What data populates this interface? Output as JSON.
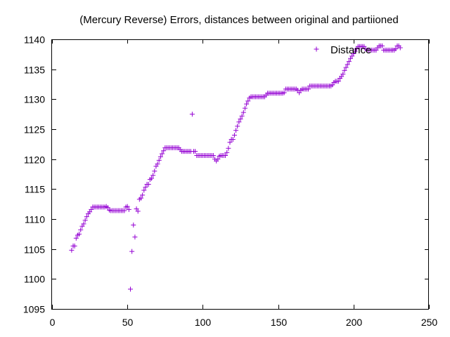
{
  "chart_data": {
    "type": "scatter",
    "title": "(Mercury Reverse) Errors, distances between original and partiioned",
    "xlabel": "",
    "ylabel": "",
    "xlim": [
      0,
      250
    ],
    "ylim": [
      1095,
      1140
    ],
    "xticks": [
      "0",
      "50",
      "100",
      "150",
      "200",
      "250"
    ],
    "yticks": [
      "1095",
      "1100",
      "1105",
      "1110",
      "1115",
      "1120",
      "1125",
      "1130",
      "1135",
      "1140"
    ],
    "grid": false,
    "legend_position": "top-right",
    "series": [
      {
        "name": "Distance",
        "color": "#9400d3",
        "marker": "plus",
        "points": [
          [
            13,
            1104.8
          ],
          [
            14,
            1105.5
          ],
          [
            15,
            1105.5
          ],
          [
            16,
            1106.8
          ],
          [
            17,
            1107.3
          ],
          [
            18,
            1107.5
          ],
          [
            19,
            1108.2
          ],
          [
            20,
            1108.8
          ],
          [
            21,
            1109.2
          ],
          [
            22,
            1109.8
          ],
          [
            23,
            1110.4
          ],
          [
            24,
            1110.9
          ],
          [
            25,
            1111.2
          ],
          [
            26,
            1111.6
          ],
          [
            27,
            1112.0
          ],
          [
            28,
            1112.0
          ],
          [
            29,
            1112.0
          ],
          [
            30,
            1112.0
          ],
          [
            31,
            1112.0
          ],
          [
            32,
            1112.0
          ],
          [
            33,
            1112.0
          ],
          [
            34,
            1112.0
          ],
          [
            35,
            1112.0
          ],
          [
            36,
            1112.1
          ],
          [
            37,
            1111.9
          ],
          [
            38,
            1111.5
          ],
          [
            39,
            1111.4
          ],
          [
            40,
            1111.4
          ],
          [
            41,
            1111.4
          ],
          [
            42,
            1111.4
          ],
          [
            43,
            1111.4
          ],
          [
            44,
            1111.4
          ],
          [
            45,
            1111.4
          ],
          [
            46,
            1111.4
          ],
          [
            47,
            1111.4
          ],
          [
            48,
            1111.4
          ],
          [
            49,
            1112.0
          ],
          [
            50,
            1112.1
          ],
          [
            51,
            1111.6
          ],
          [
            52,
            1098.3
          ],
          [
            53,
            1104.6
          ],
          [
            54,
            1109.0
          ],
          [
            55,
            1107.0
          ],
          [
            56,
            1111.7
          ],
          [
            57,
            1111.3
          ],
          [
            58,
            1113.3
          ],
          [
            59,
            1113.5
          ],
          [
            60,
            1114.0
          ],
          [
            61,
            1114.8
          ],
          [
            62,
            1115.3
          ],
          [
            63,
            1115.8
          ],
          [
            64,
            1115.8
          ],
          [
            65,
            1116.6
          ],
          [
            66,
            1116.8
          ],
          [
            67,
            1117.3
          ],
          [
            68,
            1118.0
          ],
          [
            69,
            1118.8
          ],
          [
            70,
            1119.2
          ],
          [
            71,
            1119.8
          ],
          [
            72,
            1120.4
          ],
          [
            73,
            1120.9
          ],
          [
            74,
            1121.4
          ],
          [
            75,
            1121.9
          ],
          [
            76,
            1121.9
          ],
          [
            77,
            1121.9
          ],
          [
            78,
            1121.9
          ],
          [
            79,
            1121.9
          ],
          [
            80,
            1121.9
          ],
          [
            81,
            1121.9
          ],
          [
            82,
            1121.9
          ],
          [
            83,
            1121.9
          ],
          [
            84,
            1121.9
          ],
          [
            85,
            1121.6
          ],
          [
            86,
            1121.3
          ],
          [
            87,
            1121.3
          ],
          [
            88,
            1121.3
          ],
          [
            89,
            1121.3
          ],
          [
            90,
            1121.3
          ],
          [
            91,
            1121.3
          ],
          [
            92,
            1121.3
          ],
          [
            93,
            1127.5
          ],
          [
            94,
            1121.3
          ],
          [
            95,
            1121.3
          ],
          [
            96,
            1120.6
          ],
          [
            97,
            1120.6
          ],
          [
            98,
            1120.6
          ],
          [
            99,
            1120.6
          ],
          [
            100,
            1120.6
          ],
          [
            101,
            1120.6
          ],
          [
            102,
            1120.6
          ],
          [
            103,
            1120.6
          ],
          [
            104,
            1120.6
          ],
          [
            105,
            1120.6
          ],
          [
            106,
            1120.6
          ],
          [
            107,
            1120.6
          ],
          [
            108,
            1120.0
          ],
          [
            109,
            1119.7
          ],
          [
            110,
            1120.0
          ],
          [
            111,
            1120.5
          ],
          [
            112,
            1120.6
          ],
          [
            113,
            1120.6
          ],
          [
            114,
            1120.6
          ],
          [
            115,
            1120.6
          ],
          [
            116,
            1121.1
          ],
          [
            117,
            1121.8
          ],
          [
            118,
            1122.8
          ],
          [
            119,
            1123.3
          ],
          [
            120,
            1123.3
          ],
          [
            121,
            1124.0
          ],
          [
            122,
            1124.8
          ],
          [
            123,
            1125.5
          ],
          [
            124,
            1126.2
          ],
          [
            125,
            1126.7
          ],
          [
            126,
            1127.2
          ],
          [
            127,
            1127.8
          ],
          [
            128,
            1128.5
          ],
          [
            129,
            1129.2
          ],
          [
            130,
            1129.7
          ],
          [
            131,
            1130.2
          ],
          [
            132,
            1130.4
          ],
          [
            133,
            1130.4
          ],
          [
            134,
            1130.4
          ],
          [
            135,
            1130.4
          ],
          [
            136,
            1130.4
          ],
          [
            137,
            1130.4
          ],
          [
            138,
            1130.4
          ],
          [
            139,
            1130.4
          ],
          [
            140,
            1130.4
          ],
          [
            141,
            1130.4
          ],
          [
            142,
            1130.7
          ],
          [
            143,
            1131.0
          ],
          [
            144,
            1131.0
          ],
          [
            145,
            1131.0
          ],
          [
            146,
            1131.0
          ],
          [
            147,
            1131.0
          ],
          [
            148,
            1131.0
          ],
          [
            149,
            1131.0
          ],
          [
            150,
            1131.0
          ],
          [
            151,
            1131.0
          ],
          [
            152,
            1131.0
          ],
          [
            153,
            1131.0
          ],
          [
            154,
            1131.1
          ],
          [
            155,
            1131.7
          ],
          [
            156,
            1131.7
          ],
          [
            157,
            1131.7
          ],
          [
            158,
            1131.7
          ],
          [
            159,
            1131.7
          ],
          [
            160,
            1131.7
          ],
          [
            161,
            1131.7
          ],
          [
            162,
            1131.7
          ],
          [
            163,
            1131.5
          ],
          [
            164,
            1131.1
          ],
          [
            165,
            1131.5
          ],
          [
            166,
            1131.7
          ],
          [
            167,
            1131.7
          ],
          [
            168,
            1131.7
          ],
          [
            169,
            1131.7
          ],
          [
            170,
            1131.7
          ],
          [
            171,
            1132.2
          ],
          [
            172,
            1132.2
          ],
          [
            173,
            1132.2
          ],
          [
            174,
            1132.2
          ],
          [
            175,
            1132.2
          ],
          [
            176,
            1132.2
          ],
          [
            177,
            1132.2
          ],
          [
            178,
            1132.2
          ],
          [
            179,
            1132.2
          ],
          [
            180,
            1132.2
          ],
          [
            181,
            1132.2
          ],
          [
            182,
            1132.2
          ],
          [
            183,
            1132.2
          ],
          [
            184,
            1132.2
          ],
          [
            185,
            1132.2
          ],
          [
            186,
            1132.4
          ],
          [
            187,
            1132.8
          ],
          [
            188,
            1133.0
          ],
          [
            189,
            1133.0
          ],
          [
            190,
            1133.0
          ],
          [
            191,
            1133.5
          ],
          [
            192,
            1133.8
          ],
          [
            193,
            1134.2
          ],
          [
            194,
            1134.8
          ],
          [
            195,
            1135.3
          ],
          [
            196,
            1135.8
          ],
          [
            197,
            1136.3
          ],
          [
            198,
            1136.8
          ],
          [
            199,
            1137.2
          ],
          [
            200,
            1137.6
          ],
          [
            201,
            1138.0
          ],
          [
            202,
            1138.4
          ],
          [
            203,
            1138.8
          ],
          [
            204,
            1138.8
          ],
          [
            205,
            1138.8
          ],
          [
            206,
            1138.8
          ],
          [
            207,
            1138.8
          ],
          [
            208,
            1138.4
          ],
          [
            209,
            1138.2
          ],
          [
            210,
            1138.2
          ],
          [
            211,
            1138.2
          ],
          [
            212,
            1138.2
          ],
          [
            213,
            1138.2
          ],
          [
            214,
            1138.2
          ],
          [
            215,
            1138.2
          ],
          [
            216,
            1138.6
          ],
          [
            217,
            1138.9
          ],
          [
            218,
            1138.9
          ],
          [
            219,
            1138.9
          ],
          [
            220,
            1138.2
          ],
          [
            221,
            1138.2
          ],
          [
            222,
            1138.2
          ],
          [
            223,
            1138.2
          ],
          [
            224,
            1138.2
          ],
          [
            225,
            1138.2
          ],
          [
            226,
            1138.2
          ],
          [
            227,
            1138.2
          ],
          [
            228,
            1138.4
          ],
          [
            229,
            1138.9
          ],
          [
            230,
            1138.9
          ],
          [
            231,
            1138.6
          ]
        ]
      }
    ]
  }
}
